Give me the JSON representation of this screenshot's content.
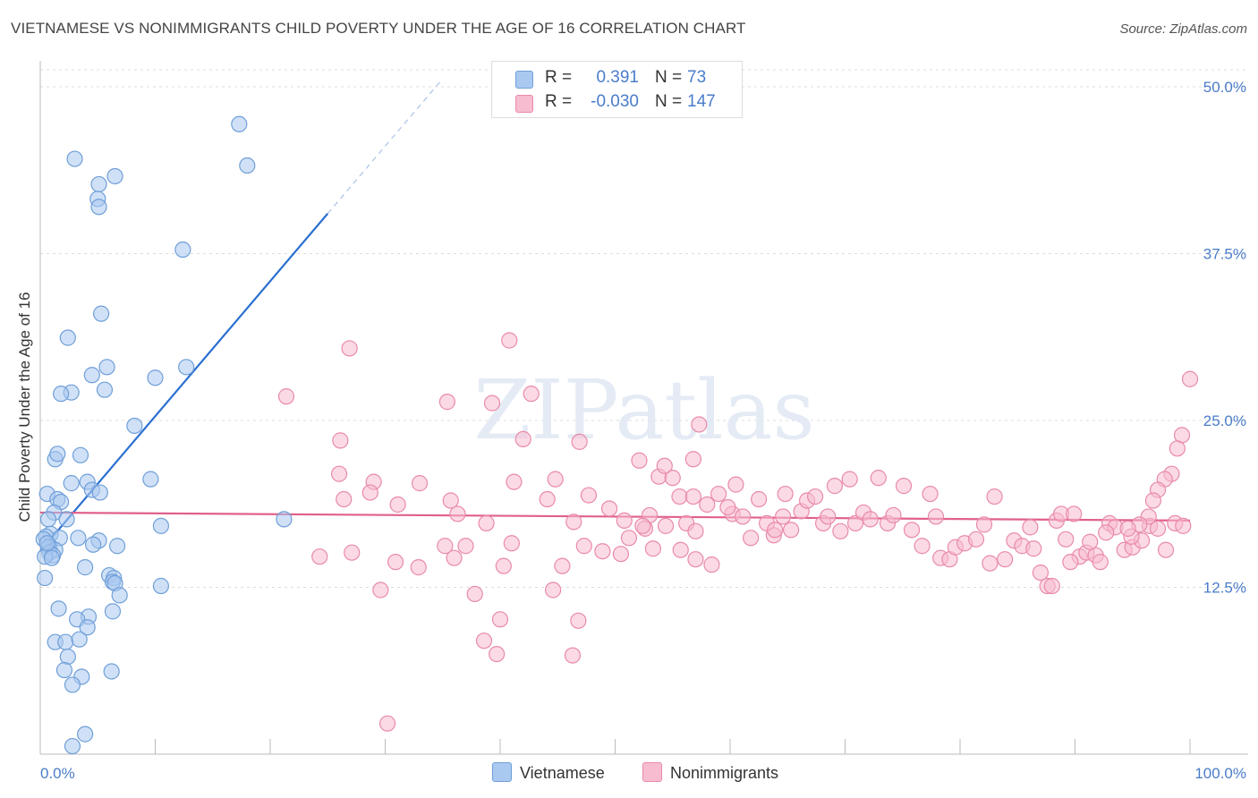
{
  "title": "VIETNAMESE VS NONIMMIGRANTS CHILD POVERTY UNDER THE AGE OF 16 CORRELATION CHART",
  "source": "Source: ZipAtlas.com",
  "watermark": "ZIPatlas",
  "legend": {
    "rows": [
      {
        "r_label": "R =",
        "r_value": "0.391",
        "n_label": "N =",
        "n_value": "73",
        "color": "#a9c9f0",
        "border": "#6f9fd8"
      },
      {
        "r_label": "R =",
        "r_value": "-0.030",
        "n_label": "N =",
        "n_value": "147",
        "color": "#f7bcd0",
        "border": "#e98aa9"
      }
    ]
  },
  "bottom_legend": [
    {
      "label": "Vietnamese",
      "color": "#a9c9f0",
      "border": "#6f9fd8"
    },
    {
      "label": "Nonimmigrants",
      "color": "#f7bcd0",
      "border": "#e98aa9"
    }
  ],
  "chart_data": {
    "type": "scatter",
    "title": "VIETNAMESE VS NONIMMIGRANTS CHILD POVERTY UNDER THE AGE OF 16 CORRELATION CHART",
    "xlabel": "",
    "ylabel": "Child Poverty Under the Age of 16",
    "xlim": [
      0,
      100
    ],
    "ylim": [
      0,
      50
    ],
    "x_tick_labels": [
      "0.0%",
      "100.0%"
    ],
    "y_ticks": [
      12.5,
      25.0,
      37.5,
      50.0
    ],
    "y_tick_labels": [
      "12.5%",
      "25.0%",
      "37.5%",
      "50.0%"
    ],
    "grid": true,
    "legend_position": "top-center",
    "series": [
      {
        "name": "Vietnamese",
        "color": "#a9c9f0",
        "edge": "#6f9fd8",
        "trend": {
          "x": [
            0,
            25
          ],
          "y": [
            15.2,
            40.5
          ],
          "dashed_to": [
            35,
            50.6
          ],
          "color": "#2a6fd1"
        },
        "points": [
          [
            3.0,
            44.6
          ],
          [
            5.1,
            42.7
          ],
          [
            5.0,
            41.6
          ],
          [
            5.1,
            41.0
          ],
          [
            6.5,
            43.3
          ],
          [
            17.3,
            47.2
          ],
          [
            18.0,
            44.1
          ],
          [
            12.4,
            37.8
          ],
          [
            5.3,
            33.0
          ],
          [
            2.4,
            31.2
          ],
          [
            5.8,
            29.0
          ],
          [
            4.5,
            28.4
          ],
          [
            5.6,
            27.3
          ],
          [
            2.7,
            27.1
          ],
          [
            1.8,
            27.0
          ],
          [
            10.0,
            28.2
          ],
          [
            12.7,
            29.0
          ],
          [
            8.2,
            24.6
          ],
          [
            1.3,
            22.1
          ],
          [
            1.5,
            22.5
          ],
          [
            3.5,
            22.4
          ],
          [
            9.6,
            20.6
          ],
          [
            2.7,
            20.3
          ],
          [
            4.1,
            20.4
          ],
          [
            4.5,
            19.8
          ],
          [
            5.2,
            19.6
          ],
          [
            0.6,
            19.5
          ],
          [
            1.5,
            19.1
          ],
          [
            1.8,
            18.9
          ],
          [
            1.2,
            18.1
          ],
          [
            0.7,
            17.6
          ],
          [
            2.3,
            17.6
          ],
          [
            0.9,
            16.5
          ],
          [
            0.5,
            16.3
          ],
          [
            1.7,
            16.2
          ],
          [
            3.3,
            16.2
          ],
          [
            0.8,
            15.6
          ],
          [
            0.3,
            16.1
          ],
          [
            5.1,
            16.0
          ],
          [
            10.5,
            17.1
          ],
          [
            21.2,
            17.6
          ],
          [
            4.6,
            15.7
          ],
          [
            6.7,
            15.6
          ],
          [
            0.7,
            15.5
          ],
          [
            1.3,
            15.3
          ],
          [
            0.8,
            15.1
          ],
          [
            1.1,
            14.9
          ],
          [
            0.4,
            14.8
          ],
          [
            3.9,
            14.0
          ],
          [
            6.0,
            13.4
          ],
          [
            6.4,
            13.2
          ],
          [
            6.3,
            12.9
          ],
          [
            0.4,
            13.2
          ],
          [
            6.5,
            12.8
          ],
          [
            10.5,
            12.6
          ],
          [
            6.9,
            11.9
          ],
          [
            1.6,
            10.9
          ],
          [
            6.3,
            10.7
          ],
          [
            4.2,
            10.3
          ],
          [
            3.2,
            10.1
          ],
          [
            4.1,
            9.5
          ],
          [
            1.3,
            8.4
          ],
          [
            2.2,
            8.4
          ],
          [
            3.4,
            8.6
          ],
          [
            2.4,
            7.3
          ],
          [
            2.1,
            6.3
          ],
          [
            6.2,
            6.2
          ],
          [
            3.6,
            5.8
          ],
          [
            2.8,
            5.2
          ],
          [
            3.9,
            1.5
          ],
          [
            2.8,
            0.6
          ],
          [
            0.6,
            15.8
          ],
          [
            1.0,
            14.7
          ]
        ]
      },
      {
        "name": "Nonimmigrants",
        "color": "#f7bcd0",
        "edge": "#e98aa9",
        "trend": {
          "x": [
            0,
            100
          ],
          "y": [
            18.1,
            17.5
          ],
          "color": "#e0608a"
        },
        "points": [
          [
            26.9,
            30.4
          ],
          [
            40.8,
            31.0
          ],
          [
            21.4,
            26.8
          ],
          [
            42.7,
            27.0
          ],
          [
            39.3,
            26.3
          ],
          [
            35.4,
            26.4
          ],
          [
            26.1,
            23.5
          ],
          [
            42.0,
            23.6
          ],
          [
            46.9,
            23.4
          ],
          [
            29.0,
            20.4
          ],
          [
            33.0,
            20.3
          ],
          [
            44.8,
            20.6
          ],
          [
            41.2,
            20.4
          ],
          [
            26.0,
            21.0
          ],
          [
            28.7,
            19.6
          ],
          [
            26.4,
            19.1
          ],
          [
            31.1,
            18.7
          ],
          [
            35.7,
            19.0
          ],
          [
            44.1,
            19.1
          ],
          [
            47.7,
            19.4
          ],
          [
            49.5,
            18.4
          ],
          [
            46.4,
            17.4
          ],
          [
            36.3,
            18.0
          ],
          [
            38.8,
            17.3
          ],
          [
            57.3,
            24.7
          ],
          [
            58.0,
            18.7
          ],
          [
            52.1,
            22.0
          ],
          [
            53.8,
            20.8
          ],
          [
            55.0,
            20.7
          ],
          [
            54.3,
            21.6
          ],
          [
            56.8,
            22.1
          ],
          [
            55.6,
            19.3
          ],
          [
            56.2,
            17.3
          ],
          [
            54.4,
            17.1
          ],
          [
            53.0,
            17.9
          ],
          [
            52.6,
            16.9
          ],
          [
            50.8,
            17.5
          ],
          [
            52.4,
            17.1
          ],
          [
            56.8,
            19.3
          ],
          [
            57.0,
            16.7
          ],
          [
            59.0,
            19.5
          ],
          [
            60.2,
            18.0
          ],
          [
            61.1,
            17.8
          ],
          [
            62.5,
            19.1
          ],
          [
            63.2,
            17.3
          ],
          [
            63.8,
            16.4
          ],
          [
            64.6,
            17.8
          ],
          [
            64.8,
            19.5
          ],
          [
            65.3,
            16.8
          ],
          [
            66.2,
            18.2
          ],
          [
            66.7,
            19.0
          ],
          [
            67.4,
            19.3
          ],
          [
            68.1,
            17.3
          ],
          [
            68.5,
            17.8
          ],
          [
            69.1,
            20.1
          ],
          [
            69.6,
            16.7
          ],
          [
            70.4,
            20.6
          ],
          [
            70.9,
            17.3
          ],
          [
            71.6,
            18.1
          ],
          [
            72.2,
            17.6
          ],
          [
            72.9,
            20.7
          ],
          [
            73.7,
            17.3
          ],
          [
            74.2,
            17.9
          ],
          [
            75.1,
            20.1
          ],
          [
            75.8,
            16.8
          ],
          [
            76.7,
            15.6
          ],
          [
            77.4,
            19.5
          ],
          [
            77.9,
            17.8
          ],
          [
            78.3,
            14.7
          ],
          [
            79.1,
            14.6
          ],
          [
            79.6,
            15.5
          ],
          [
            80.4,
            15.8
          ],
          [
            81.4,
            16.1
          ],
          [
            82.1,
            17.2
          ],
          [
            83.0,
            19.3
          ],
          [
            82.6,
            14.3
          ],
          [
            83.9,
            14.6
          ],
          [
            84.7,
            16.0
          ],
          [
            85.4,
            15.6
          ],
          [
            86.1,
            17.0
          ],
          [
            86.4,
            15.4
          ],
          [
            87.0,
            13.6
          ],
          [
            87.6,
            12.6
          ],
          [
            88.0,
            12.6
          ],
          [
            88.4,
            17.5
          ],
          [
            88.8,
            18.0
          ],
          [
            89.2,
            16.1
          ],
          [
            89.9,
            18.0
          ],
          [
            90.4,
            14.8
          ],
          [
            91.0,
            15.1
          ],
          [
            91.8,
            14.9
          ],
          [
            92.2,
            14.4
          ],
          [
            93.0,
            17.3
          ],
          [
            93.5,
            17.0
          ],
          [
            94.3,
            15.3
          ],
          [
            95.0,
            15.5
          ],
          [
            95.8,
            16.0
          ],
          [
            96.5,
            17.1
          ],
          [
            97.2,
            16.9
          ],
          [
            97.9,
            15.3
          ],
          [
            98.7,
            17.3
          ],
          [
            99.4,
            17.1
          ],
          [
            100.0,
            28.1
          ],
          [
            99.3,
            23.9
          ],
          [
            98.9,
            22.9
          ],
          [
            98.4,
            21.0
          ],
          [
            97.8,
            20.6
          ],
          [
            97.2,
            19.8
          ],
          [
            96.8,
            19.0
          ],
          [
            96.4,
            17.8
          ],
          [
            95.6,
            17.2
          ],
          [
            94.9,
            16.3
          ],
          [
            94.6,
            16.9
          ],
          [
            91.3,
            15.9
          ],
          [
            92.7,
            16.6
          ],
          [
            89.6,
            14.4
          ],
          [
            60.5,
            20.2
          ],
          [
            59.8,
            18.5
          ],
          [
            61.8,
            16.2
          ],
          [
            63.9,
            16.8
          ],
          [
            58.4,
            14.2
          ],
          [
            57.0,
            14.6
          ],
          [
            55.7,
            15.3
          ],
          [
            53.3,
            15.4
          ],
          [
            51.2,
            16.2
          ],
          [
            50.5,
            15.0
          ],
          [
            48.9,
            15.2
          ],
          [
            47.3,
            15.6
          ],
          [
            45.4,
            14.1
          ],
          [
            44.6,
            12.3
          ],
          [
            41.0,
            15.8
          ],
          [
            40.3,
            14.1
          ],
          [
            37.0,
            15.6
          ],
          [
            36.0,
            14.7
          ],
          [
            35.2,
            15.6
          ],
          [
            32.9,
            14.0
          ],
          [
            30.9,
            14.4
          ],
          [
            29.6,
            12.3
          ],
          [
            27.1,
            15.1
          ],
          [
            24.3,
            14.8
          ],
          [
            37.8,
            12.0
          ],
          [
            40.0,
            10.1
          ],
          [
            46.8,
            10.0
          ],
          [
            38.6,
            8.5
          ],
          [
            39.7,
            7.5
          ],
          [
            46.3,
            7.4
          ],
          [
            30.2,
            2.3
          ]
        ]
      }
    ]
  }
}
